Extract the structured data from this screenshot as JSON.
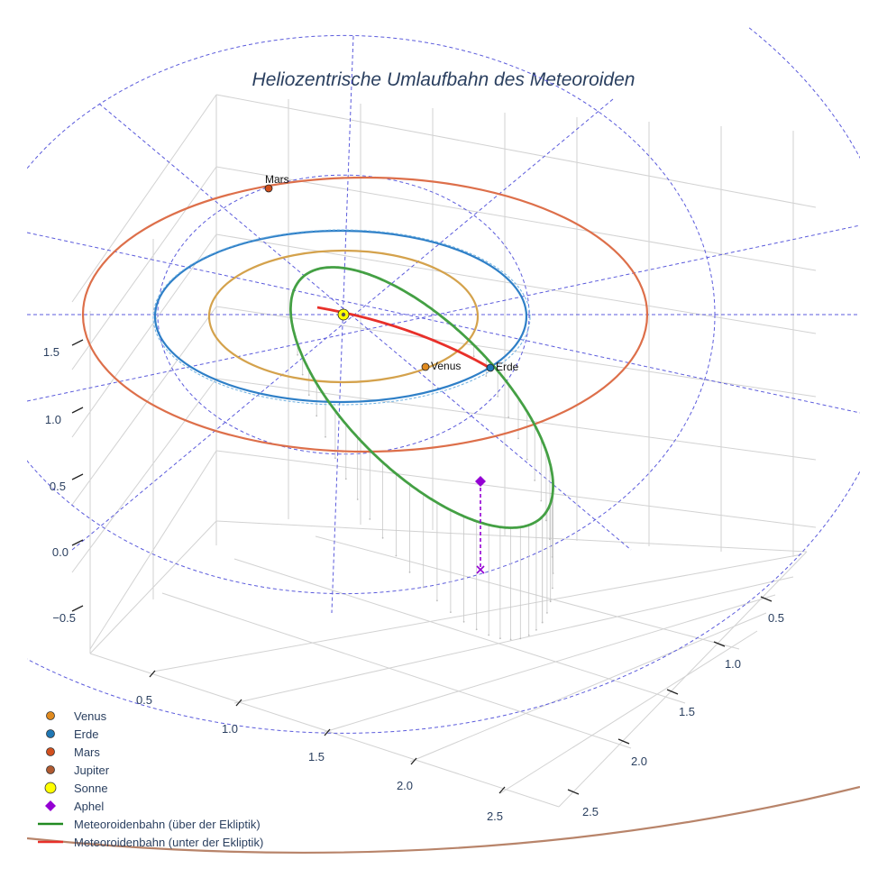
{
  "chart_data": {
    "type": "scatter3d",
    "title": "Heliozentrische Umlaufbahn des Meteoroiden",
    "axes": {
      "x_ticks": [
        0.5,
        1.0,
        1.5,
        2.0,
        2.5
      ],
      "y_ticks": [
        0.5,
        1.0,
        1.5,
        2.0,
        2.5
      ],
      "z_ticks": [
        -0.5,
        0.0,
        0.5,
        1.0,
        1.5
      ],
      "x_tick_labels": [
        "0.5",
        "1.0",
        "1.5",
        "2.0",
        "2.5"
      ],
      "y_tick_labels": [
        "0.5",
        "1.0",
        "1.5",
        "2.0",
        "2.5"
      ],
      "z_tick_labels": [
        "−0.5",
        "0.0",
        "0.5",
        "1.0",
        "1.5"
      ],
      "grid": true
    },
    "planet_orbits": [
      {
        "name": "Venus",
        "radius_au": 0.72,
        "color": "#d4a24c"
      },
      {
        "name": "Erde",
        "radius_au": 1.0,
        "color": "#2e7fc7"
      },
      {
        "name": "Mars",
        "radius_au": 1.52,
        "color": "#dd6f4a"
      },
      {
        "name": "Jupiter",
        "radius_au": 5.2,
        "color": "#b8846a"
      }
    ],
    "planets": [
      {
        "name": "Venus",
        "label": "Venus",
        "color": "#e08a1e"
      },
      {
        "name": "Erde",
        "label": "Erde",
        "color": "#1f77b4"
      },
      {
        "name": "Mars",
        "label": "Mars",
        "color": "#d2501e"
      }
    ],
    "meteoroid_orbit": {
      "perihelion_au": 0.05,
      "aphelion_au": 2.3,
      "aphelion_z_au": 0.55,
      "above_color": "#44a044",
      "below_color": "#e8302a"
    },
    "legend": [
      {
        "label": "Venus",
        "symbol": "circle",
        "color": "#e08a1e"
      },
      {
        "label": "Erde",
        "symbol": "circle",
        "color": "#1f77b4"
      },
      {
        "label": "Mars",
        "symbol": "circle",
        "color": "#d2501e"
      },
      {
        "label": "Jupiter",
        "symbol": "circle",
        "color": "#b05a30"
      },
      {
        "label": "Sonne",
        "symbol": "circle",
        "color": "#ffff00"
      },
      {
        "label": "Aphel",
        "symbol": "diamond",
        "color": "#9400d3"
      },
      {
        "label": "Meteoroidenbahn (über der Ekliptik)",
        "symbol": "line",
        "color": "#228b22"
      },
      {
        "label": "Meteoroidenbahn (unter der Ekliptik)",
        "symbol": "line",
        "color": "#e8302a"
      }
    ]
  }
}
